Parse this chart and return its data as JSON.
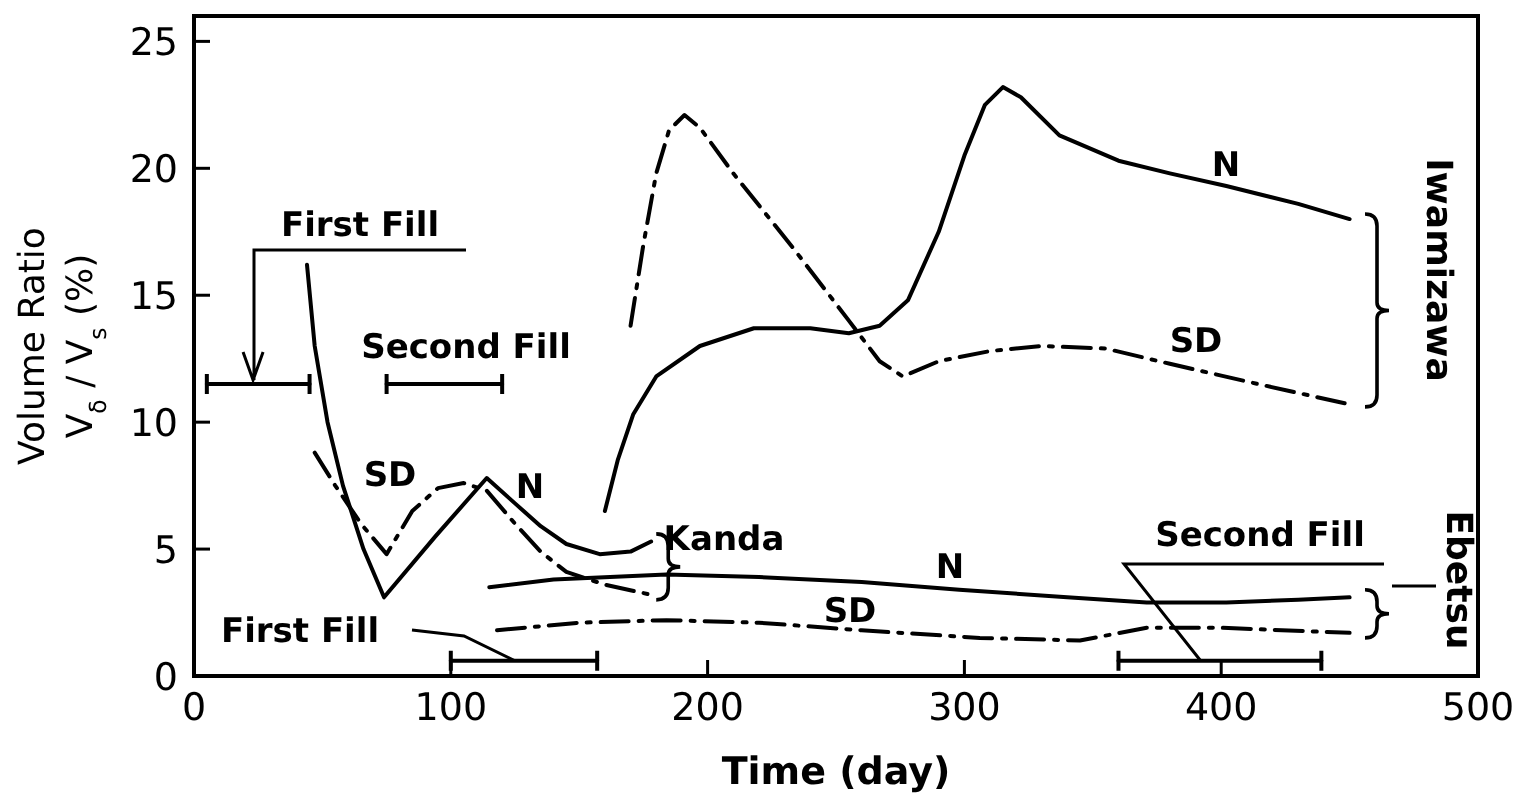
{
  "chart_data": {
    "type": "line",
    "xlabel": "Time (day)",
    "ylabel": "Volume Ratio\nV$_{δ}$ / V$_{s}$ (%)",
    "xlim": [
      0,
      500
    ],
    "xticks": [
      0,
      100,
      200,
      300,
      400,
      500
    ],
    "ylim": [
      0,
      26
    ],
    "yticks": [
      0,
      5,
      10,
      15,
      20,
      25
    ],
    "grid": false,
    "series": [
      {
        "color": "#000000",
        "line_style": "solid",
        "x": [
          44,
          47,
          52,
          58,
          66,
          74,
          94,
          114,
          125,
          135,
          145,
          158,
          170,
          178
        ],
        "values": [
          16.2,
          13,
          10,
          7.5,
          5,
          3.1,
          5.5,
          7.8,
          6.8,
          5.9,
          5.2,
          4.8,
          4.9,
          5.3
        ]
      },
      {
        "color": "#000000",
        "line_style": "dashdot",
        "x": [
          47,
          55,
          65,
          75,
          85,
          95,
          105,
          114,
          125,
          135,
          145,
          160,
          178
        ],
        "values": [
          8.8,
          7.5,
          6,
          4.8,
          6.5,
          7.4,
          7.6,
          7.3,
          6,
          4.9,
          4.1,
          3.6,
          3.2
        ]
      },
      {
        "color": "#000000",
        "line_style": "solid",
        "x": [
          160,
          165,
          171,
          180,
          197,
          218,
          240,
          255,
          267,
          278,
          290,
          300,
          308,
          315,
          322,
          337,
          360,
          380,
          402,
          430,
          450
        ],
        "values": [
          6.5,
          8.5,
          10.3,
          11.8,
          13,
          13.7,
          13.7,
          13.5,
          13.8,
          14.8,
          17.5,
          20.5,
          22.5,
          23.2,
          22.8,
          21.3,
          20.3,
          19.8,
          19.3,
          18.6,
          18
        ]
      },
      {
        "color": "#000000",
        "line_style": "dashdot",
        "x": [
          170,
          175,
          180,
          185,
          191,
          197,
          210,
          233,
          255,
          267,
          276,
          290,
          310,
          330,
          355,
          380,
          410,
          450
        ],
        "values": [
          13.8,
          17,
          19.8,
          21.5,
          22.1,
          21.6,
          19.8,
          16.9,
          14,
          12.4,
          11.8,
          12.4,
          12.8,
          13,
          12.9,
          12.3,
          11.6,
          10.7
        ]
      },
      {
        "color": "#000000",
        "line_style": "solid",
        "x": [
          115,
          140,
          184,
          220,
          260,
          298,
          340,
          371,
          402,
          430,
          450
        ],
        "values": [
          3.5,
          3.8,
          4.0,
          3.9,
          3.7,
          3.4,
          3.1,
          2.9,
          2.9,
          3.0,
          3.1
        ]
      },
      {
        "color": "#000000",
        "line_style": "dashdot",
        "x": [
          118,
          150,
          184,
          220,
          260,
          306,
          345,
          371,
          400,
          450
        ],
        "values": [
          1.8,
          2.1,
          2.2,
          2.1,
          1.8,
          1.5,
          1.4,
          1.9,
          1.9,
          1.7
        ]
      },
      {
        "color": "#000000",
        "line_style": "solid",
        "x": [
          5,
          45
        ],
        "values": [
          11.5,
          11.5
        ]
      },
      {
        "color": "#000000",
        "line_style": "solid",
        "x": [
          75,
          120
        ],
        "values": [
          11.5,
          11.5
        ]
      },
      {
        "color": "#000000",
        "line_style": "solid",
        "x": [
          100,
          157
        ],
        "values": [
          0.6,
          0.6
        ]
      },
      {
        "color": "#000000",
        "line_style": "solid",
        "x": [
          360,
          439
        ],
        "values": [
          0.6,
          0.6
        ]
      }
    ],
    "annotations": [
      {
        "text": "First Fill",
        "x": 23,
        "y": 11.5
      },
      "Second Fill",
      {
        "text": "First Fill",
        "x": 125,
        "y": 0.6
      },
      {
        "text": "Second Fill",
        "x": 392,
        "y": 0.6
      },
      "SD",
      "N",
      "N",
      "SD",
      "N",
      "SD",
      "Kanda",
      "Iwamizawa",
      "Ebetsu"
    ]
  }
}
